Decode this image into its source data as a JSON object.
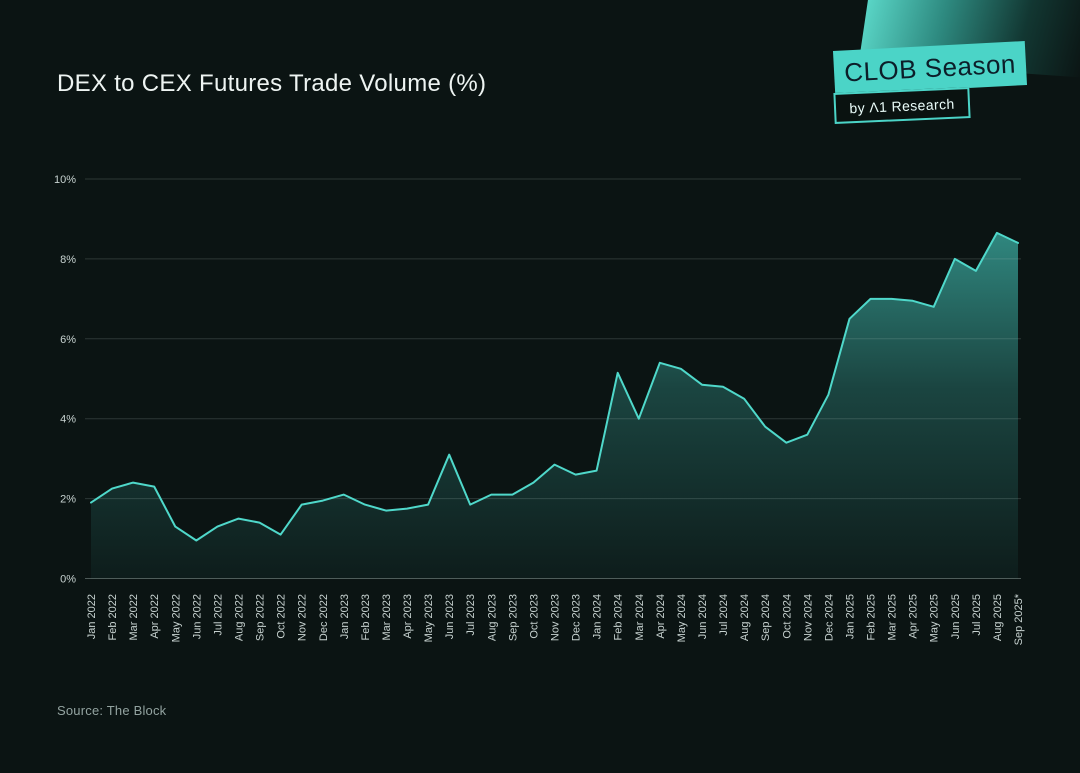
{
  "page": {
    "title": "DEX to CEX Futures Trade Volume (%)",
    "source": "Source: The Block",
    "background_color": "#0b1413"
  },
  "badge": {
    "primary_label": "CLOB Season",
    "secondary_label": "by Λ1 Research",
    "teal_color": "#4bd4c7",
    "text_color": "#0c1e29"
  },
  "chart_data": {
    "type": "area",
    "title": "DEX to CEX Futures Trade Volume (%)",
    "unit": "%",
    "ylim": [
      0,
      10
    ],
    "ytick_labels": [
      "0%",
      "2%",
      "4%",
      "6%",
      "8%",
      "10%"
    ],
    "ytick_values": [
      0,
      2,
      4,
      6,
      8,
      10
    ],
    "grid": true,
    "legend": "none",
    "line_color": "#4fd8ca",
    "fill_color": "#49d6c9",
    "axis_label_color": "#c7d2d0",
    "categories": [
      "Jan 2022",
      "Feb 2022",
      "Mar 2022",
      "Apr 2022",
      "May 2022",
      "Jun 2022",
      "Jul 2022",
      "Aug 2022",
      "Sep 2022",
      "Oct 2022",
      "Nov 2022",
      "Dec 2022",
      "Jan 2023",
      "Feb 2023",
      "Mar 2023",
      "Apr 2023",
      "May 2023",
      "Jun 2023",
      "Jul 2023",
      "Aug 2023",
      "Sep 2023",
      "Oct 2023",
      "Nov 2023",
      "Dec 2023",
      "Jan 2024",
      "Feb 2024",
      "Mar 2024",
      "Apr 2024",
      "May 2024",
      "Jun 2024",
      "Jul 2024",
      "Aug 2024",
      "Sep 2024",
      "Oct 2024",
      "Nov 2024",
      "Dec 2024",
      "Jan 2025",
      "Feb 2025",
      "Mar 2025",
      "Apr 2025",
      "May 2025",
      "Jun 2025",
      "Jul 2025",
      "Aug 2025",
      "Sep 2025*"
    ],
    "values": [
      1.9,
      2.25,
      2.4,
      2.3,
      1.3,
      0.95,
      1.3,
      1.5,
      1.4,
      1.1,
      1.85,
      1.95,
      2.1,
      1.85,
      1.7,
      1.75,
      1.85,
      3.1,
      1.85,
      2.1,
      2.1,
      2.4,
      2.85,
      2.6,
      2.7,
      5.15,
      4.0,
      5.4,
      5.25,
      4.85,
      4.8,
      4.5,
      3.8,
      3.4,
      3.6,
      4.6,
      6.5,
      7.0,
      7.0,
      6.95,
      6.8,
      8.0,
      7.7,
      8.65,
      8.4
    ]
  }
}
